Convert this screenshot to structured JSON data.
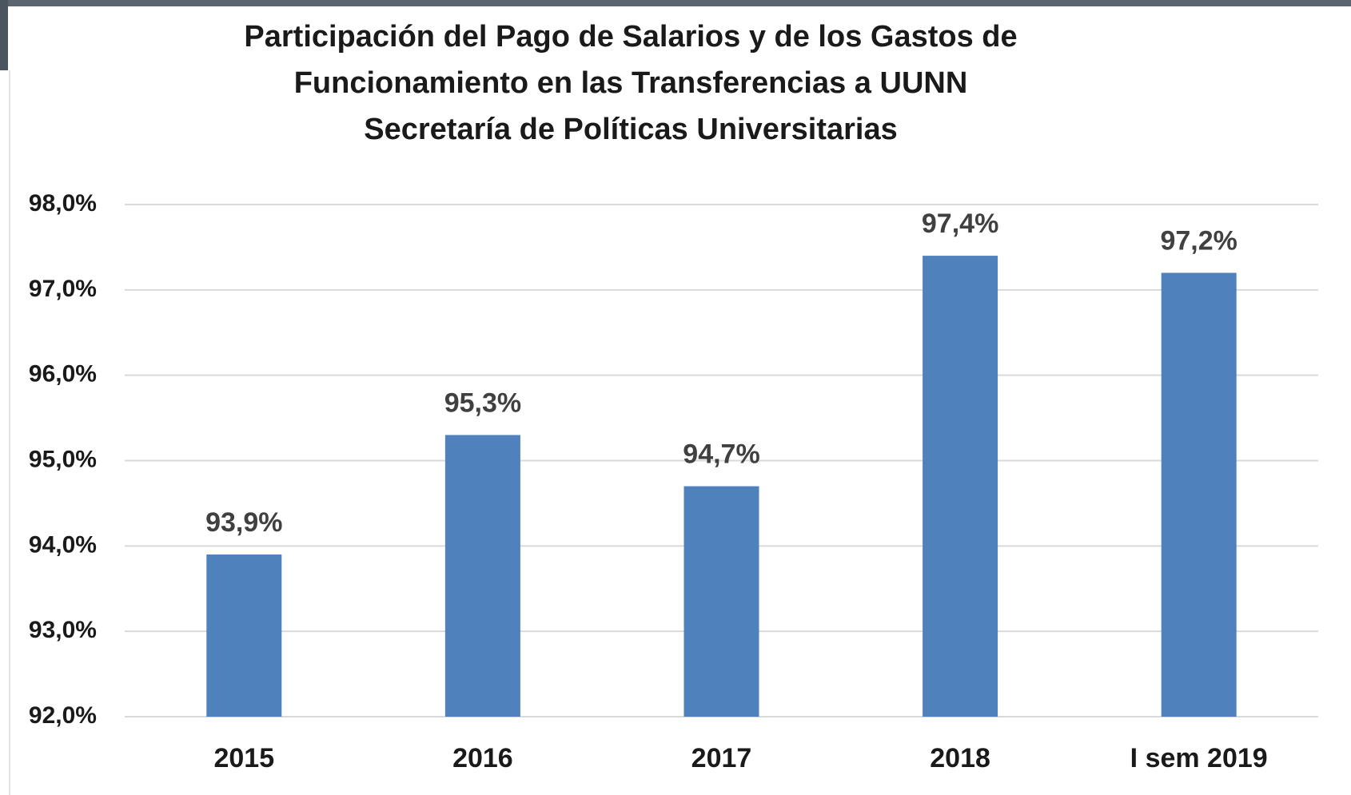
{
  "chart_data": {
    "type": "bar",
    "title": [
      "Participación del Pago de Salarios y de los Gastos de",
      "Funcionamiento en las Transferencias a UUNN",
      "Secretaría de Políticas Universitarias"
    ],
    "categories": [
      "2015",
      "2016",
      "2017",
      "2018",
      "I sem 2019"
    ],
    "values": [
      93.9,
      95.3,
      94.7,
      97.4,
      97.2
    ],
    "value_labels": [
      "93,9%",
      "95,3%",
      "94,7%",
      "97,4%",
      "97,2%"
    ],
    "color": "#4f81bd",
    "ylim": [
      92,
      98
    ],
    "yticks": [
      {
        "value": 92,
        "label": "92,0%"
      },
      {
        "value": 93,
        "label": "93,0%"
      },
      {
        "value": 94,
        "label": "94,0%"
      },
      {
        "value": 95,
        "label": "95,0%"
      },
      {
        "value": 96,
        "label": "96,0%"
      },
      {
        "value": 97,
        "label": "97,0%"
      },
      {
        "value": 98,
        "label": "98,0%"
      }
    ],
    "grid": true
  }
}
